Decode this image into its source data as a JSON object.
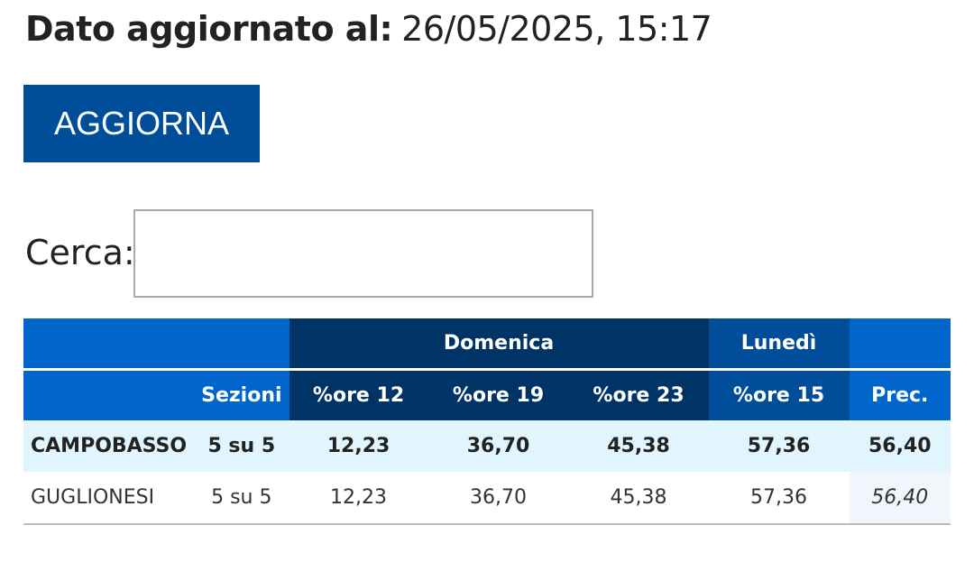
{
  "update": {
    "label": "Dato aggiornato al:",
    "value": "26/05/2025, 15:17"
  },
  "refresh_button": "AGGIORNA",
  "search": {
    "label": "Cerca:",
    "value": "",
    "placeholder": ""
  },
  "table": {
    "group_headers": {
      "domenica": "Domenica",
      "lunedi": "Lunedì"
    },
    "columns": [
      "Sezioni",
      "%ore 12",
      "%ore 19",
      "%ore 23",
      "%ore 15",
      "Prec."
    ],
    "rows": [
      {
        "name": "CAMPOBASSO",
        "sezioni": "5 su 5",
        "ore12": "12,23",
        "ore19": "36,70",
        "ore23": "45,38",
        "ore15": "57,36",
        "prec": "56,40"
      },
      {
        "name": "GUGLIONESI",
        "sezioni": "5 su 5",
        "ore12": "12,23",
        "ore19": "36,70",
        "ore23": "45,38",
        "ore15": "57,36",
        "prec": "56,40"
      }
    ]
  },
  "colors": {
    "primary": "#0066cc",
    "navy": "#003366",
    "button": "#004d99",
    "highlight_row": "#e0f5fd"
  }
}
